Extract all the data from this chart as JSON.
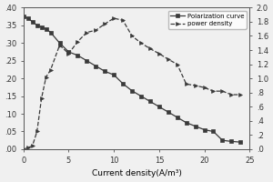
{
  "polarization_x": [
    0,
    0.5,
    1,
    1.5,
    2,
    2.5,
    3,
    4,
    5,
    6,
    7,
    8,
    9,
    10,
    11,
    12,
    13,
    14,
    15,
    16,
    17,
    18,
    19,
    20,
    21,
    22,
    23,
    24
  ],
  "polarization_y": [
    0.375,
    0.37,
    0.36,
    0.35,
    0.345,
    0.34,
    0.33,
    0.3,
    0.275,
    0.265,
    0.25,
    0.235,
    0.22,
    0.21,
    0.185,
    0.165,
    0.15,
    0.135,
    0.12,
    0.105,
    0.09,
    0.075,
    0.065,
    0.055,
    0.05,
    0.025,
    0.022,
    0.02
  ],
  "power_x": [
    0,
    0.5,
    1,
    1.5,
    2,
    2.5,
    3,
    4,
    5,
    6,
    7,
    8,
    9,
    10,
    11,
    12,
    13,
    14,
    15,
    16,
    17,
    18,
    19,
    20,
    21,
    22,
    23,
    24
  ],
  "power_y": [
    0.0,
    0.02,
    0.05,
    0.25,
    0.72,
    1.02,
    1.12,
    1.47,
    1.35,
    1.52,
    1.65,
    1.68,
    1.77,
    1.85,
    1.82,
    1.6,
    1.5,
    1.42,
    1.35,
    1.27,
    1.2,
    0.92,
    0.9,
    0.87,
    0.82,
    0.82,
    0.77,
    0.77
  ],
  "xlabel": "Current density(A/m³)",
  "left_ylim": [
    0.0,
    0.4
  ],
  "right_ylim": [
    0.0,
    2.0
  ],
  "xlim": [
    0,
    25
  ],
  "left_yticks": [
    0.0,
    0.05,
    0.1,
    0.15,
    0.2,
    0.25,
    0.3,
    0.35,
    0.4
  ],
  "right_yticks": [
    0.0,
    0.2,
    0.4,
    0.6,
    0.8,
    1.0,
    1.2,
    1.4,
    1.6,
    1.8,
    2.0
  ],
  "xticks": [
    0,
    5,
    10,
    15,
    20,
    25
  ],
  "line_color": "#3a3a3a",
  "marker_square": "s",
  "marker_triangle": ">",
  "legend_pol": "Polarization curve",
  "legend_pow": "power density",
  "bg_color": "#f0f0f0"
}
